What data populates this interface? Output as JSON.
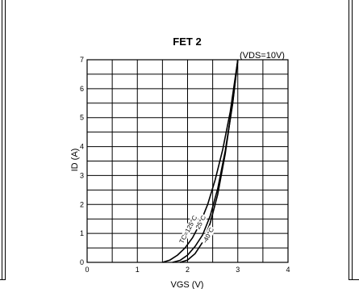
{
  "chart_data": {
    "type": "line",
    "title": "FET 2",
    "condition": "(VDS=10V)",
    "xlabel": "VGS (V)",
    "ylabel": "ID (A)",
    "xlim": [
      0,
      4
    ],
    "ylim": [
      0,
      7
    ],
    "xticks": [
      "0",
      "1",
      "2",
      "3",
      "4"
    ],
    "yticks": [
      "0",
      "1",
      "2",
      "3",
      "4",
      "5",
      "6",
      "7"
    ],
    "grid": true,
    "series": [
      {
        "name": "TC=125°C",
        "x": [
          1.5,
          1.65,
          1.8,
          1.95,
          2.1,
          2.25,
          2.4,
          2.55,
          2.7,
          2.85,
          3.0
        ],
        "y": [
          0,
          0.08,
          0.25,
          0.5,
          0.85,
          1.35,
          2.0,
          2.85,
          3.9,
          5.2,
          7.0
        ]
      },
      {
        "name": "25°C",
        "x": [
          1.7,
          1.85,
          2.0,
          2.15,
          2.3,
          2.45,
          2.6,
          2.75,
          2.9,
          3.0
        ],
        "y": [
          0,
          0.07,
          0.25,
          0.55,
          0.95,
          1.6,
          2.55,
          3.85,
          5.5,
          7.0
        ]
      },
      {
        "name": "-40°C",
        "x": [
          1.85,
          2.0,
          2.15,
          2.3,
          2.45,
          2.6,
          2.75,
          2.9,
          3.0
        ],
        "y": [
          0,
          0.08,
          0.3,
          0.7,
          1.35,
          2.35,
          3.75,
          5.55,
          7.0
        ]
      }
    ]
  }
}
